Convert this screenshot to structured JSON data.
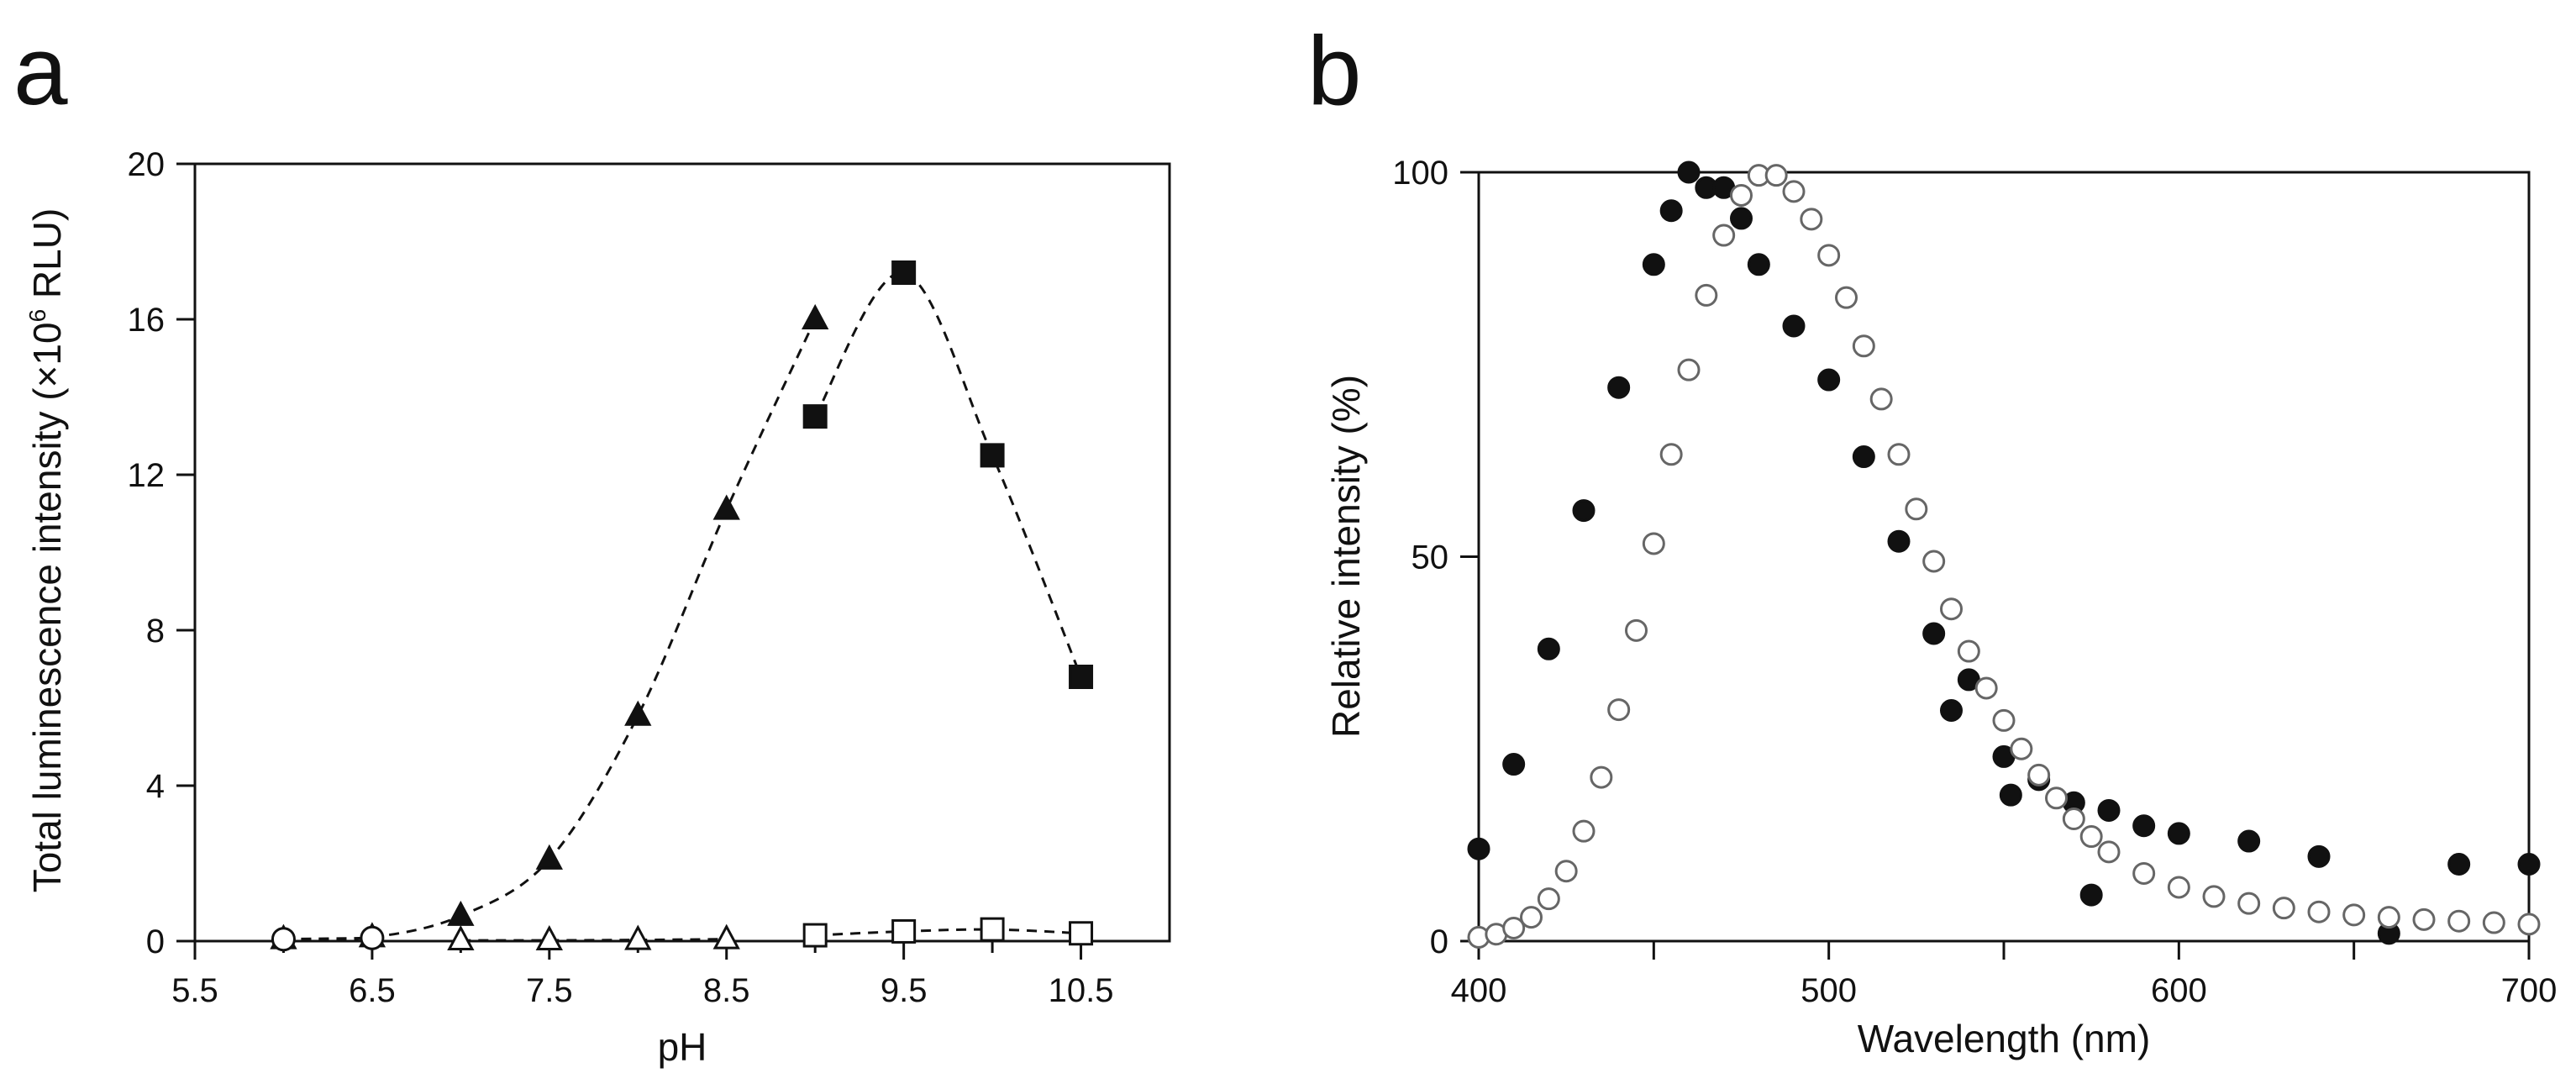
{
  "chart_data": [
    {
      "panel": "a",
      "type": "scatter",
      "xlabel": "pH",
      "ylabel_parts": [
        "Total luminescence intensity (×10",
        "6",
        " RLU)"
      ],
      "xlim": [
        5.5,
        11.0
      ],
      "ylim": [
        0,
        20
      ],
      "xticks": [
        5.5,
        6.5,
        7.5,
        8.5,
        9.5,
        10.5
      ],
      "xtick_labels": [
        "5.5",
        "6.5",
        "7.5",
        "8.5",
        "9.5",
        "10.5"
      ],
      "yticks": [
        0,
        4,
        8,
        12,
        16,
        20
      ],
      "ytick_labels": [
        "0",
        "4",
        "8",
        "12",
        "16",
        "20"
      ],
      "grid": false,
      "series": [
        {
          "name": "filled triangles",
          "marker": "triangle",
          "filled": true,
          "dashed_line": true,
          "x": [
            6.0,
            6.5,
            7.0,
            7.5,
            8.0,
            8.5,
            9.0
          ],
          "y": [
            0.05,
            0.1,
            0.65,
            2.1,
            5.8,
            11.1,
            16.0
          ]
        },
        {
          "name": "filled squares",
          "marker": "square",
          "filled": true,
          "dashed_line": true,
          "x": [
            9.0,
            9.5,
            10.0,
            10.5
          ],
          "y": [
            13.5,
            17.2,
            12.5,
            6.8
          ]
        },
        {
          "name": "open triangles",
          "marker": "triangle",
          "filled": false,
          "dashed_line": true,
          "x": [
            7.0,
            7.5,
            8.0,
            8.5
          ],
          "y": [
            0.02,
            0.02,
            0.03,
            0.05
          ]
        },
        {
          "name": "open squares",
          "marker": "square",
          "filled": false,
          "dashed_line": true,
          "x": [
            9.0,
            9.5,
            10.0,
            10.5
          ],
          "y": [
            0.15,
            0.25,
            0.3,
            0.2
          ]
        },
        {
          "name": "open circles",
          "marker": "circle",
          "filled": false,
          "dashed_line": true,
          "x": [
            6.0,
            6.5
          ],
          "y": [
            0.05,
            0.08
          ]
        }
      ]
    },
    {
      "panel": "b",
      "type": "scatter",
      "xlabel": "Wavelength (nm)",
      "ylabel": "Relative intensity (%)",
      "xlim": [
        400,
        700
      ],
      "ylim": [
        0,
        100
      ],
      "xticks": [
        400,
        500,
        600,
        700
      ],
      "xtick_labels": [
        "400",
        "500",
        "600",
        "700"
      ],
      "minor_xticks": [
        450,
        550,
        650
      ],
      "yticks": [
        0,
        50,
        100
      ],
      "ytick_labels": [
        "0",
        "50",
        "100"
      ],
      "grid": false,
      "series": [
        {
          "name": "filled circles",
          "marker": "circle",
          "filled": true,
          "x": [
            400,
            410,
            420,
            430,
            440,
            450,
            455,
            460,
            465,
            470,
            475,
            480,
            490,
            500,
            510,
            520,
            530,
            535,
            540,
            550,
            552,
            560,
            570,
            575,
            580,
            590,
            600,
            620,
            640,
            660,
            680,
            700
          ],
          "y": [
            12,
            23,
            38,
            56,
            72,
            88,
            95,
            100,
            98,
            98,
            94,
            88,
            80,
            73,
            63,
            52,
            40,
            30,
            34,
            24,
            19,
            21,
            18,
            6,
            17,
            15,
            14,
            13,
            11,
            1,
            10,
            10
          ]
        },
        {
          "name": "open circles",
          "marker": "circle",
          "filled": false,
          "x": [
            400,
            405,
            410,
            415,
            420,
            425,
            430,
            435,
            440,
            445,
            450,
            455,
            460,
            465,
            470,
            475,
            480,
            485,
            490,
            495,
            500,
            505,
            510,
            515,
            520,
            525,
            530,
            535,
            540,
            545,
            550,
            555,
            560,
            565,
            570,
            575,
            580,
            590,
            600,
            610,
            620,
            630,
            640,
            650,
            660,
            670,
            680,
            690,
            700
          ],
          "y": [
            0.5,
            0.9,
            1.7,
            3.1,
            5.5,
            9.1,
            14.3,
            21.3,
            30.1,
            40.4,
            51.7,
            63.3,
            74.3,
            84.0,
            91.8,
            97.0,
            99.6,
            99.6,
            97.5,
            93.9,
            89.2,
            83.7,
            77.4,
            70.5,
            63.3,
            56.2,
            49.4,
            43.2,
            37.7,
            32.9,
            28.7,
            25.0,
            21.6,
            18.6,
            15.9,
            13.6,
            11.6,
            8.8,
            7.0,
            5.8,
            4.9,
            4.3,
            3.8,
            3.4,
            3.1,
            2.8,
            2.6,
            2.4,
            2.2
          ]
        }
      ]
    }
  ],
  "panel_letters": {
    "a": "a",
    "b": "b"
  }
}
